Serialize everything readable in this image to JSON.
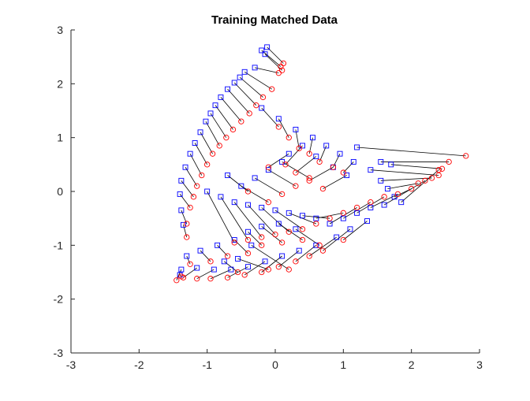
{
  "chart_data": {
    "type": "scatter",
    "title": "Training Matched Data",
    "xlabel": "",
    "ylabel": "",
    "xlim": [
      -3,
      3
    ],
    "ylim": [
      -3,
      3
    ],
    "x_ticks": [
      -3,
      -2,
      -1,
      0,
      1,
      2,
      3
    ],
    "y_ticks": [
      -3,
      -2,
      -1,
      0,
      1,
      2,
      3
    ],
    "x_tick_labels": [
      "-3",
      "-2",
      "-1",
      "0",
      "1",
      "2",
      "3"
    ],
    "y_tick_labels": [
      "-3",
      "-2",
      "-1",
      "0",
      "1",
      "2",
      "3"
    ],
    "grid": false,
    "legend": null,
    "series_styles": {
      "source": {
        "marker": "square",
        "color": "#0000ff"
      },
      "target": {
        "marker": "circle",
        "color": "#ff0000"
      },
      "links": {
        "color": "#000000"
      }
    },
    "pairs": [
      [
        [
          -0.12,
          2.68
        ],
        [
          0.12,
          2.38
        ]
      ],
      [
        [
          -0.2,
          2.62
        ],
        [
          0.08,
          2.32
        ]
      ],
      [
        [
          -0.15,
          2.55
        ],
        [
          0.1,
          2.25
        ]
      ],
      [
        [
          -0.3,
          2.3
        ],
        [
          0.05,
          2.2
        ]
      ],
      [
        [
          -0.45,
          2.22
        ],
        [
          -0.05,
          1.9
        ]
      ],
      [
        [
          -0.52,
          2.12
        ],
        [
          -0.18,
          1.75
        ]
      ],
      [
        [
          -0.6,
          2.02
        ],
        [
          -0.28,
          1.6
        ]
      ],
      [
        [
          -0.7,
          1.9
        ],
        [
          -0.38,
          1.45
        ]
      ],
      [
        [
          -0.8,
          1.75
        ],
        [
          -0.5,
          1.3
        ]
      ],
      [
        [
          -0.88,
          1.6
        ],
        [
          -0.62,
          1.15
        ]
      ],
      [
        [
          -0.95,
          1.45
        ],
        [
          -0.72,
          1.0
        ]
      ],
      [
        [
          -1.02,
          1.3
        ],
        [
          -0.82,
          0.85
        ]
      ],
      [
        [
          -1.1,
          1.1
        ],
        [
          -0.92,
          0.7
        ]
      ],
      [
        [
          -1.18,
          0.9
        ],
        [
          -1.0,
          0.5
        ]
      ],
      [
        [
          -1.25,
          0.7
        ],
        [
          -1.08,
          0.3
        ]
      ],
      [
        [
          -1.32,
          0.45
        ],
        [
          -1.15,
          0.1
        ]
      ],
      [
        [
          -1.38,
          0.2
        ],
        [
          -1.2,
          -0.1
        ]
      ],
      [
        [
          -1.4,
          -0.05
        ],
        [
          -1.25,
          -0.3
        ]
      ],
      [
        [
          -1.38,
          -0.35
        ],
        [
          -1.3,
          -0.6
        ]
      ],
      [
        [
          -1.35,
          -0.62
        ],
        [
          -1.3,
          -0.85
        ]
      ],
      [
        [
          -0.2,
          1.55
        ],
        [
          0.05,
          1.2
        ]
      ],
      [
        [
          0.05,
          1.35
        ],
        [
          0.2,
          1.0
        ]
      ],
      [
        [
          0.3,
          1.15
        ],
        [
          0.35,
          0.8
        ]
      ],
      [
        [
          0.55,
          1.0
        ],
        [
          0.5,
          0.7
        ]
      ],
      [
        [
          0.75,
          0.85
        ],
        [
          0.65,
          0.55
        ]
      ],
      [
        [
          0.95,
          0.7
        ],
        [
          0.85,
          0.45
        ]
      ],
      [
        [
          1.15,
          0.55
        ],
        [
          1.0,
          0.35
        ]
      ],
      [
        [
          0.4,
          0.85
        ],
        [
          0.15,
          0.5
        ]
      ],
      [
        [
          0.2,
          0.7
        ],
        [
          -0.1,
          0.45
        ]
      ],
      [
        [
          0.6,
          0.65
        ],
        [
          0.3,
          0.35
        ]
      ],
      [
        [
          0.85,
          0.45
        ],
        [
          0.5,
          0.2
        ]
      ],
      [
        [
          1.05,
          0.3
        ],
        [
          0.7,
          0.05
        ]
      ],
      [
        [
          1.2,
          0.82
        ],
        [
          2.8,
          0.66
        ]
      ],
      [
        [
          1.55,
          0.55
        ],
        [
          2.55,
          0.55
        ]
      ],
      [
        [
          1.7,
          0.5
        ],
        [
          2.45,
          0.42
        ]
      ],
      [
        [
          1.4,
          0.4
        ],
        [
          2.4,
          0.3
        ]
      ],
      [
        [
          1.55,
          0.2
        ],
        [
          2.3,
          0.25
        ]
      ],
      [
        [
          1.65,
          0.05
        ],
        [
          2.1,
          0.15
        ]
      ],
      [
        [
          1.75,
          -0.1
        ],
        [
          2.0,
          0.05
        ]
      ],
      [
        [
          1.85,
          -0.2
        ],
        [
          2.4,
          0.4
        ]
      ],
      [
        [
          1.6,
          -0.25
        ],
        [
          2.2,
          0.2
        ]
      ],
      [
        [
          1.4,
          -0.3
        ],
        [
          1.8,
          -0.05
        ]
      ],
      [
        [
          1.2,
          -0.4
        ],
        [
          1.6,
          -0.1
        ]
      ],
      [
        [
          1.0,
          -0.5
        ],
        [
          1.4,
          -0.2
        ]
      ],
      [
        [
          0.8,
          -0.6
        ],
        [
          1.2,
          -0.3
        ]
      ],
      [
        [
          0.6,
          -0.5
        ],
        [
          1.0,
          -0.4
        ]
      ],
      [
        [
          0.4,
          -0.45
        ],
        [
          0.8,
          -0.5
        ]
      ],
      [
        [
          0.2,
          -0.4
        ],
        [
          0.6,
          -0.6
        ]
      ],
      [
        [
          0.0,
          -0.35
        ],
        [
          0.4,
          -0.7
        ]
      ],
      [
        [
          -0.2,
          -0.3
        ],
        [
          0.2,
          -0.75
        ]
      ],
      [
        [
          -0.4,
          -0.25
        ],
        [
          0.0,
          -0.8
        ]
      ],
      [
        [
          -0.6,
          -0.2
        ],
        [
          -0.2,
          -0.85
        ]
      ],
      [
        [
          -0.8,
          -0.1
        ],
        [
          -0.4,
          -0.9
        ]
      ],
      [
        [
          -1.0,
          0.0
        ],
        [
          -0.6,
          -0.95
        ]
      ],
      [
        [
          -0.3,
          0.25
        ],
        [
          0.1,
          -0.05
        ]
      ],
      [
        [
          -0.5,
          0.1
        ],
        [
          -0.1,
          -0.2
        ]
      ],
      [
        [
          -0.1,
          0.4
        ],
        [
          0.3,
          0.1
        ]
      ],
      [
        [
          0.1,
          0.55
        ],
        [
          0.5,
          0.25
        ]
      ],
      [
        [
          -0.7,
          0.3
        ],
        [
          -0.4,
          0.0
        ]
      ],
      [
        [
          1.35,
          -0.55
        ],
        [
          1.0,
          -0.9
        ]
      ],
      [
        [
          1.1,
          -0.7
        ],
        [
          0.7,
          -1.1
        ]
      ],
      [
        [
          0.9,
          -0.85
        ],
        [
          0.5,
          -1.2
        ]
      ],
      [
        [
          0.6,
          -1.0
        ],
        [
          0.3,
          -1.3
        ]
      ],
      [
        [
          0.35,
          -1.1
        ],
        [
          0.05,
          -1.4
        ]
      ],
      [
        [
          0.1,
          -1.2
        ],
        [
          -0.2,
          -1.5
        ]
      ],
      [
        [
          -0.15,
          -1.3
        ],
        [
          -0.45,
          -1.55
        ]
      ],
      [
        [
          -0.4,
          -1.4
        ],
        [
          -0.7,
          -1.6
        ]
      ],
      [
        [
          -0.65,
          -1.45
        ],
        [
          -0.95,
          -1.62
        ]
      ],
      [
        [
          -0.9,
          -1.45
        ],
        [
          -1.15,
          -1.62
        ]
      ],
      [
        [
          -1.15,
          -1.42
        ],
        [
          -1.35,
          -1.6
        ]
      ],
      [
        [
          -1.38,
          -1.45
        ],
        [
          -1.45,
          -1.65
        ]
      ],
      [
        [
          -1.4,
          -1.55
        ],
        [
          -1.38,
          -1.58
        ]
      ],
      [
        [
          -1.3,
          -1.2
        ],
        [
          -1.25,
          -1.35
        ]
      ],
      [
        [
          -1.1,
          -1.1
        ],
        [
          -0.95,
          -1.3
        ]
      ],
      [
        [
          -0.85,
          -1.0
        ],
        [
          -0.7,
          -1.2
        ]
      ],
      [
        [
          -0.6,
          -0.9
        ],
        [
          -0.4,
          -1.15
        ]
      ],
      [
        [
          -0.4,
          -0.75
        ],
        [
          -0.2,
          -1.0
        ]
      ],
      [
        [
          -0.2,
          -0.65
        ],
        [
          0.1,
          -0.95
        ]
      ],
      [
        [
          0.05,
          -0.6
        ],
        [
          0.4,
          -0.9
        ]
      ],
      [
        [
          0.3,
          -0.7
        ],
        [
          0.65,
          -1.0
        ]
      ],
      [
        [
          -0.35,
          -1.0
        ],
        [
          0.2,
          -1.45
        ]
      ],
      [
        [
          -0.55,
          -1.25
        ],
        [
          -0.1,
          -1.45
        ]
      ],
      [
        [
          -0.75,
          -1.3
        ],
        [
          -0.55,
          -1.5
        ]
      ]
    ]
  }
}
